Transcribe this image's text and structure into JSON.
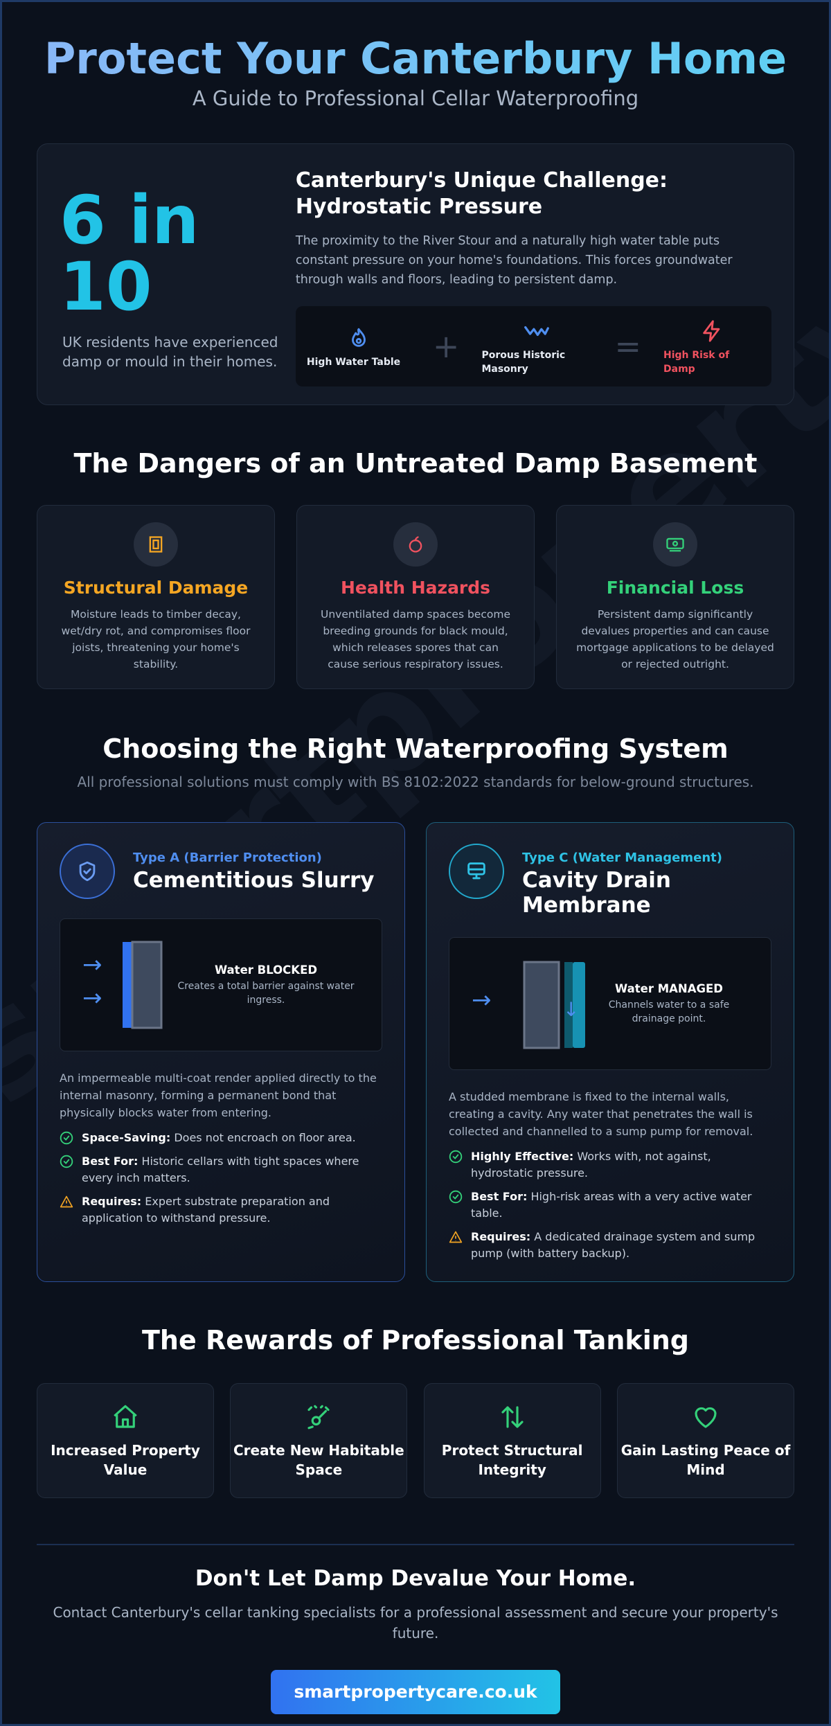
{
  "header": {
    "title": "Protect Your Canterbury Home",
    "subtitle": "A Guide to Professional Cellar Waterproofing"
  },
  "watermark": "smartpropertycare.co.uk",
  "intro": {
    "stat_value": "6 in 10",
    "stat_text": "UK residents have experienced damp or mould in their homes.",
    "challenge_title": "Canterbury's Unique Challenge: Hydrostatic Pressure",
    "challenge_desc": "The proximity to the River Stour and a naturally high water table puts constant pressure on your home's foundations. This forces groundwater through walls and floors, leading to persistent damp.",
    "equation": {
      "item1": "High Water Table",
      "item2": "Porous Historic Masonry",
      "result": "High Risk of Damp",
      "op_plus": "+",
      "op_equals": "="
    }
  },
  "dangers": {
    "title": "The Dangers of an Untreated Damp Basement",
    "items": [
      {
        "title": "Structural Damage",
        "desc": "Moisture leads to timber decay, wet/dry rot, and compromises floor joists, threatening your home's stability.",
        "color": "#f5a623",
        "icon": "door-frame-icon"
      },
      {
        "title": "Health Hazards",
        "desc": "Unventilated damp spaces become breeding grounds for black mould, which releases spores that can cause serious respiratory issues.",
        "color": "#f0525f",
        "icon": "spore-icon"
      },
      {
        "title": "Financial Loss",
        "desc": "Persistent damp significantly devalues properties and can cause mortgage applications to be delayed or rejected outright.",
        "color": "#34d17a",
        "icon": "money-icon"
      }
    ]
  },
  "systems": {
    "title": "Choosing the Right Waterproofing System",
    "subtitle": "All professional solutions must comply with BS 8102:2022 standards for below-ground structures.",
    "type_a": {
      "type": "Type A (Barrier Protection)",
      "name": "Cementitious Slurry",
      "diagram_title": "Water BLOCKED",
      "diagram_sub": "Creates a total barrier against water ingress.",
      "desc": "An impermeable multi-coat render applied directly to the internal masonry, forming a permanent bond that physically blocks water from entering.",
      "features": [
        {
          "label": "Space-Saving:",
          "text": "Does not encroach on floor area.",
          "icon": "check-icon"
        },
        {
          "label": "Best For:",
          "text": "Historic cellars with tight spaces where every inch matters.",
          "icon": "check-icon"
        },
        {
          "label": "Requires:",
          "text": "Expert substrate preparation and application to withstand pressure.",
          "icon": "warning-icon"
        }
      ]
    },
    "type_c": {
      "type": "Type C (Water Management)",
      "name": "Cavity Drain Membrane",
      "diagram_title": "Water MANAGED",
      "diagram_sub": "Channels water to a safe drainage point.",
      "desc": "A studded membrane is fixed to the internal walls, creating a cavity. Any water that penetrates the wall is collected and channelled to a sump pump for removal.",
      "features": [
        {
          "label": "Highly Effective:",
          "text": "Works with, not against, hydrostatic pressure.",
          "icon": "check-icon"
        },
        {
          "label": "Best For:",
          "text": "High-risk areas with a very active water table.",
          "icon": "check-icon"
        },
        {
          "label": "Requires:",
          "text": "A dedicated drainage system and sump pump (with battery backup).",
          "icon": "warning-icon"
        }
      ]
    }
  },
  "rewards": {
    "title": "The Rewards of Professional Tanking",
    "items": [
      {
        "label": "Increased Property Value",
        "icon": "house-icon"
      },
      {
        "label": "Create New Habitable Space",
        "icon": "sparkle-icon"
      },
      {
        "label": "Protect Structural Integrity",
        "icon": "arrows-icon"
      },
      {
        "label": "Gain Lasting Peace of Mind",
        "icon": "heart-icon"
      }
    ]
  },
  "footer": {
    "title": "Don't Let Damp Devalue Your Home.",
    "text": "Contact Canterbury's cellar tanking specialists for a professional assessment and secure your property's future.",
    "cta": "smartpropertycare.co.uk"
  }
}
